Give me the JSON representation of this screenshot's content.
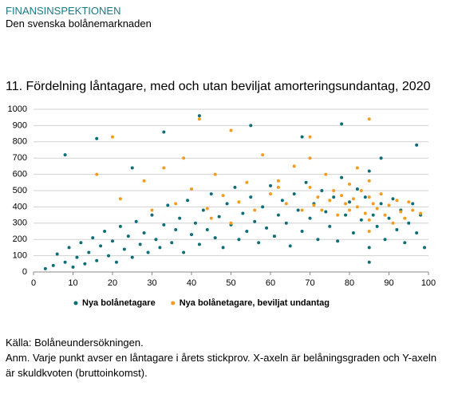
{
  "header": {
    "org": "FINANSINSPEKTIONEN",
    "subtitle": "Den svenska bolånemarknaden"
  },
  "chart_data": {
    "type": "scatter",
    "title": "11. Fördelning låntagare, med och utan beviljat amorteringsundantag, 2020",
    "xlim": [
      0,
      100
    ],
    "xticks": [
      0,
      10,
      20,
      30,
      40,
      50,
      60,
      70,
      80,
      90,
      100
    ],
    "ylim": [
      0,
      1000
    ],
    "yticks": [
      0,
      100,
      200,
      300,
      400,
      500,
      600,
      700,
      800,
      900,
      1000
    ],
    "grid": true,
    "series": [
      {
        "name": "Nya bolånetagare",
        "color": "#0e6e78",
        "x": [
          3,
          5,
          6,
          8,
          9,
          10,
          11,
          12,
          13,
          14,
          15,
          16,
          17,
          18,
          19,
          20,
          21,
          22,
          23,
          24,
          25,
          26,
          27,
          28,
          29,
          30,
          31,
          32,
          33,
          34,
          35,
          36,
          37,
          38,
          39,
          40,
          41,
          42,
          43,
          44,
          45,
          46,
          47,
          48,
          49,
          50,
          51,
          52,
          53,
          54,
          55,
          56,
          57,
          58,
          59,
          60,
          61,
          62,
          63,
          64,
          65,
          66,
          67,
          68,
          69,
          70,
          71,
          72,
          73,
          74,
          75,
          76,
          77,
          78,
          79,
          80,
          81,
          82,
          83,
          84,
          85,
          85,
          85,
          86,
          87,
          88,
          89,
          90,
          91,
          92,
          93,
          94,
          95,
          96,
          97,
          98,
          99,
          8,
          16,
          25,
          33,
          42,
          55,
          68,
          78,
          88,
          97
        ],
        "values": [
          20,
          40,
          110,
          60,
          150,
          30,
          90,
          180,
          50,
          120,
          210,
          70,
          160,
          250,
          100,
          190,
          60,
          280,
          140,
          220,
          90,
          310,
          170,
          240,
          120,
          350,
          200,
          150,
          290,
          410,
          180,
          260,
          330,
          120,
          440,
          230,
          300,
          170,
          380,
          260,
          480,
          210,
          340,
          150,
          420,
          290,
          520,
          200,
          360,
          250,
          460,
          310,
          180,
          400,
          270,
          530,
          220,
          350,
          440,
          300,
          160,
          480,
          380,
          250,
          550,
          330,
          420,
          200,
          500,
          370,
          280,
          460,
          190,
          580,
          350,
          430,
          240,
          510,
          320,
          460,
          150,
          620,
          60,
          350,
          280,
          420,
          200,
          330,
          450,
          260,
          380,
          180,
          300,
          420,
          240,
          350,
          150,
          720,
          820,
          640,
          860,
          960,
          900,
          830,
          910,
          700,
          780
        ]
      },
      {
        "name": "Nya bolånetagare, beviljat undantag",
        "color": "#f39c1f",
        "x": [
          20,
          22,
          28,
          30,
          33,
          36,
          38,
          40,
          42,
          44,
          46,
          48,
          50,
          52,
          54,
          56,
          58,
          60,
          62,
          64,
          66,
          68,
          70,
          70,
          71,
          72,
          73,
          74,
          75,
          76,
          77,
          78,
          79,
          80,
          80,
          81,
          82,
          83,
          84,
          85,
          85,
          85,
          85,
          85,
          86,
          87,
          88,
          89,
          90,
          91,
          92,
          93,
          94,
          95,
          96,
          98,
          16,
          45,
          50,
          62,
          70,
          82
        ],
        "values": [
          830,
          450,
          560,
          380,
          640,
          420,
          700,
          510,
          940,
          390,
          600,
          470,
          870,
          430,
          550,
          380,
          720,
          480,
          560,
          420,
          650,
          380,
          520,
          830,
          410,
          460,
          380,
          600,
          440,
          500,
          350,
          470,
          420,
          380,
          540,
          450,
          400,
          500,
          360,
          460,
          320,
          560,
          250,
          940,
          420,
          390,
          480,
          350,
          410,
          300,
          440,
          370,
          330,
          430,
          380,
          360,
          600,
          330,
          300,
          520,
          700,
          640
        ]
      }
    ]
  },
  "notes": {
    "source": "Källa: Bolåneundersökningen.",
    "note": "Anm. Varje punkt avser en låntagare i årets stickprov. X-axeln är belåningsgraden och Y-axeln är skuldkvoten (bruttoinkomst)."
  }
}
